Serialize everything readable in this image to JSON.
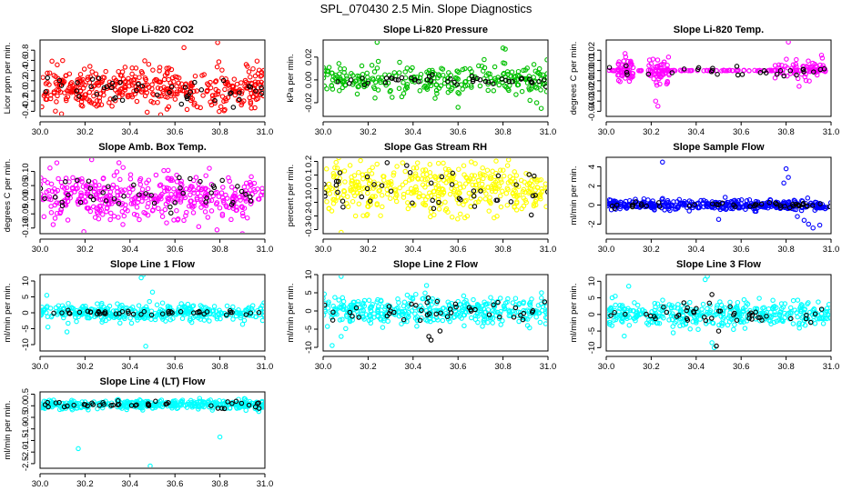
{
  "figure": {
    "title": "SPL_070430  2.5 Min. Slope Diagnostics"
  },
  "chart_data": [
    {
      "type": "scatter",
      "title": "Slope Li-820 CO2",
      "ylabel": "Licor ppm per min.",
      "xlim": [
        30.0,
        31.0
      ],
      "ylim": [
        -0.5,
        1.0
      ],
      "xticks": [
        30.0,
        30.2,
        30.4,
        30.6,
        30.8,
        31.0
      ],
      "xtick_labels": [
        "30.0",
        "30.2",
        "30.4",
        "30.6",
        "30.8",
        "31.0"
      ],
      "yticks": [
        -0.4,
        -0.2,
        0.0,
        0.2,
        0.4,
        0.6,
        0.8
      ],
      "ytick_labels": [
        "-0.4",
        "-0.2",
        "0.0",
        "0.2",
        "0.4",
        "0.6",
        "0.8"
      ],
      "series": [
        {
          "name": "color",
          "color": "#ff0000",
          "n": 420,
          "pattern": "noise",
          "center": 0.05,
          "spread": 0.2,
          "outliers": [
            [
              30.64,
              0.85
            ],
            [
              30.79,
              0.95
            ]
          ]
        },
        {
          "name": "black",
          "color": "#000000",
          "n": 45,
          "pattern": "noise",
          "center": 0.0,
          "spread": 0.15
        }
      ]
    },
    {
      "type": "scatter",
      "title": "Slope Li-820 Pressure",
      "ylabel": "kPa per min.",
      "xlim": [
        30.0,
        31.0
      ],
      "ylim": [
        -0.032,
        0.035
      ],
      "xticks": [
        30.0,
        30.2,
        30.4,
        30.6,
        30.8,
        31.0
      ],
      "xtick_labels": [
        "30.0",
        "30.2",
        "30.4",
        "30.6",
        "30.8",
        "31.0"
      ],
      "yticks": [
        -0.02,
        0.0,
        0.02
      ],
      "ytick_labels": [
        "-0.02",
        "0.00",
        "0.02"
      ],
      "series": [
        {
          "name": "color",
          "color": "#00c000",
          "n": 280,
          "pattern": "noise",
          "center": 0.0,
          "spread": 0.006,
          "outliers": [
            [
              30.24,
              0.033
            ],
            [
              30.8,
              0.028
            ],
            [
              30.81,
              0.027
            ],
            [
              30.97,
              -0.025
            ],
            [
              30.95,
              -0.02
            ],
            [
              30.92,
              -0.018
            ],
            [
              30.6,
              -0.024
            ]
          ]
        },
        {
          "name": "black",
          "color": "#000000",
          "n": 45,
          "pattern": "noise",
          "center": 0.0,
          "spread": 0.002
        }
      ]
    },
    {
      "type": "scatter",
      "title": "Slope Li-820 Temp.",
      "ylabel": "degrees C per min.",
      "xlim": [
        30.0,
        31.0
      ],
      "ylim": [
        -0.045,
        0.03
      ],
      "xticks": [
        30.0,
        30.2,
        30.4,
        30.6,
        30.8,
        31.0
      ],
      "xtick_labels": [
        "30.0",
        "30.2",
        "30.4",
        "30.6",
        "30.8",
        "31.0"
      ],
      "yticks": [
        -0.04,
        -0.03,
        -0.02,
        -0.01,
        0.0,
        0.01,
        0.02
      ],
      "ytick_labels": [
        "-0.04",
        "-0.03",
        "-0.02",
        "-0.01",
        "0.00",
        "0.01",
        "0.02"
      ],
      "series": [
        {
          "name": "color",
          "color": "#ff00ff",
          "n": 260,
          "pattern": "clusters",
          "center": 0.0,
          "spread": 0.006,
          "clusters": [
            [
              30.05,
              30.12
            ],
            [
              30.19,
              30.28
            ],
            [
              30.75,
              30.98
            ]
          ],
          "outliers": [
            [
              30.81,
              0.028
            ],
            [
              30.23,
              -0.035
            ],
            [
              30.22,
              -0.03
            ]
          ]
        },
        {
          "name": "black",
          "color": "#000000",
          "n": 30,
          "pattern": "noise",
          "center": 0.0,
          "spread": 0.003
        }
      ]
    },
    {
      "type": "scatter",
      "title": "Slope Amb. Box Temp.",
      "ylabel": "degrees C per min.",
      "xlim": [
        30.0,
        31.0
      ],
      "ylim": [
        -0.12,
        0.15
      ],
      "xticks": [
        30.0,
        30.2,
        30.4,
        30.6,
        30.8,
        31.0
      ],
      "xtick_labels": [
        "30.0",
        "30.2",
        "30.4",
        "30.6",
        "30.8",
        "31.0"
      ],
      "yticks": [
        -0.1,
        -0.05,
        0.0,
        0.05,
        0.1
      ],
      "ytick_labels": [
        "-0.10",
        "-0.05",
        "0.00",
        "0.05",
        "0.10"
      ],
      "series": [
        {
          "name": "color",
          "color": "#ff00ff",
          "n": 420,
          "pattern": "noise",
          "center": 0.01,
          "spread": 0.045,
          "outliers": [
            [
              30.9,
              -0.12
            ]
          ]
        },
        {
          "name": "black",
          "color": "#000000",
          "n": 45,
          "pattern": "noise",
          "center": 0.02,
          "spread": 0.03
        }
      ]
    },
    {
      "type": "scatter",
      "title": "Slope Gas Stream RH",
      "ylabel": "percent per min.",
      "xlim": [
        30.0,
        31.0
      ],
      "ylim": [
        -0.33,
        0.23
      ],
      "xticks": [
        30.0,
        30.2,
        30.4,
        30.6,
        30.8,
        31.0
      ],
      "xtick_labels": [
        "30.0",
        "30.2",
        "30.4",
        "30.6",
        "30.8",
        "31.0"
      ],
      "yticks": [
        -0.3,
        -0.2,
        -0.1,
        0.0,
        0.1,
        0.2
      ],
      "ytick_labels": [
        "-0.3",
        "-0.2",
        "-0.1",
        "0.0",
        "0.1",
        "0.2"
      ],
      "series": [
        {
          "name": "color",
          "color": "#ffff00",
          "n": 420,
          "pattern": "noise",
          "center": 0.0,
          "spread": 0.09,
          "outliers": [
            [
              30.08,
              -0.32
            ]
          ]
        },
        {
          "name": "black",
          "color": "#000000",
          "n": 45,
          "pattern": "noise",
          "center": 0.0,
          "spread": 0.08
        }
      ]
    },
    {
      "type": "scatter",
      "title": "Slope Sample Flow",
      "ylabel": "ml/min per min.",
      "xlim": [
        30.0,
        31.0
      ],
      "ylim": [
        -3.0,
        5.0
      ],
      "xticks": [
        30.0,
        30.2,
        30.4,
        30.6,
        30.8,
        31.0
      ],
      "xtick_labels": [
        "30.0",
        "30.2",
        "30.4",
        "30.6",
        "30.8",
        "31.0"
      ],
      "yticks": [
        -2,
        0,
        2,
        4
      ],
      "ytick_labels": [
        "-2",
        "0",
        "2",
        "4"
      ],
      "series": [
        {
          "name": "color",
          "color": "#0000ff",
          "n": 380,
          "pattern": "noise",
          "center": 0.0,
          "spread": 0.25,
          "outliers": [
            [
              30.25,
              4.5
            ],
            [
              30.8,
              3.8
            ],
            [
              30.81,
              2.9
            ],
            [
              30.79,
              2.3
            ],
            [
              30.9,
              -2.0
            ],
            [
              30.92,
              -2.4
            ],
            [
              30.95,
              -2.1
            ],
            [
              30.88,
              -1.6
            ],
            [
              30.5,
              -1.5
            ],
            [
              30.85,
              -1.2
            ]
          ]
        },
        {
          "name": "black",
          "color": "#000000",
          "n": 45,
          "pattern": "noise",
          "center": 0.0,
          "spread": 0.15
        }
      ]
    },
    {
      "type": "scatter",
      "title": "Slope Line 1 Flow",
      "ylabel": "ml/min per min.",
      "xlim": [
        30.0,
        31.0
      ],
      "ylim": [
        -12.0,
        12.0
      ],
      "xticks": [
        30.0,
        30.2,
        30.4,
        30.6,
        30.8,
        31.0
      ],
      "xtick_labels": [
        "30.0",
        "30.2",
        "30.4",
        "30.6",
        "30.8",
        "31.0"
      ],
      "yticks": [
        -10,
        -5,
        0,
        5,
        10
      ],
      "ytick_labels": [
        "-10",
        "-5",
        "0",
        "5",
        "10"
      ],
      "series": [
        {
          "name": "color",
          "color": "#00ffff",
          "n": 380,
          "pattern": "noise",
          "center": 0.0,
          "spread": 1.3,
          "outliers": [
            [
              30.45,
              11.0
            ],
            [
              30.46,
              12.0
            ],
            [
              30.47,
              -10.5
            ],
            [
              30.12,
              -6.0
            ],
            [
              30.5,
              6.5
            ],
            [
              30.03,
              5.5
            ]
          ]
        },
        {
          "name": "black",
          "color": "#000000",
          "n": 45,
          "pattern": "noise",
          "center": 0.0,
          "spread": 0.4
        }
      ]
    },
    {
      "type": "scatter",
      "title": "Slope Line 2 Flow",
      "ylabel": "ml/min per min.",
      "xlim": [
        30.0,
        31.0
      ],
      "ylim": [
        -11.0,
        10.0
      ],
      "xticks": [
        30.0,
        30.2,
        30.4,
        30.6,
        30.8,
        31.0
      ],
      "xtick_labels": [
        "30.0",
        "30.2",
        "30.4",
        "30.6",
        "30.8",
        "31.0"
      ],
      "yticks": [
        -10,
        -5,
        0,
        5,
        10
      ],
      "ytick_labels": [
        "-10",
        "-5",
        "0",
        "5",
        "10"
      ],
      "series": [
        {
          "name": "color",
          "color": "#00ffff",
          "n": 380,
          "pattern": "noise",
          "center": 0.0,
          "spread": 1.8,
          "outliers": [
            [
              30.08,
              9.5
            ],
            [
              30.04,
              -9.5
            ],
            [
              30.08,
              -7.0
            ],
            [
              30.99,
              -3.5
            ],
            [
              30.0,
              3.5
            ],
            [
              30.46,
              7.0
            ]
          ]
        },
        {
          "name": "black",
          "color": "#000000",
          "n": 45,
          "pattern": "noise",
          "center": 0.0,
          "spread": 1.5,
          "outliers": [
            [
              30.47,
              -7.0
            ],
            [
              30.48,
              -8.0
            ],
            [
              30.52,
              -5.5
            ]
          ]
        }
      ]
    },
    {
      "type": "scatter",
      "title": "Slope Line 3 Flow",
      "ylabel": "ml/min per min.",
      "xlim": [
        30.0,
        31.0
      ],
      "ylim": [
        -11.0,
        12.0
      ],
      "xticks": [
        30.0,
        30.2,
        30.4,
        30.6,
        30.8,
        31.0
      ],
      "xtick_labels": [
        "30.0",
        "30.2",
        "30.4",
        "30.6",
        "30.8",
        "31.0"
      ],
      "yticks": [
        -10,
        -5,
        0,
        5,
        10
      ],
      "ytick_labels": [
        "-10",
        "-5",
        "0",
        "5",
        "10"
      ],
      "series": [
        {
          "name": "color",
          "color": "#00ffff",
          "n": 380,
          "pattern": "noise",
          "center": 0.0,
          "spread": 1.8,
          "outliers": [
            [
              30.44,
              10.5
            ],
            [
              30.45,
              11.5
            ],
            [
              30.48,
              -10.0
            ],
            [
              30.47,
              -8.5
            ],
            [
              30.08,
              -6.5
            ],
            [
              30.1,
              8.5
            ],
            [
              30.04,
              5.5
            ]
          ]
        },
        {
          "name": "black",
          "color": "#000000",
          "n": 45,
          "pattern": "noise",
          "center": 0.0,
          "spread": 1.5,
          "outliers": [
            [
              30.47,
              6.0
            ],
            [
              30.5,
              -5.0
            ],
            [
              30.49,
              -9.5
            ]
          ]
        }
      ]
    },
    {
      "type": "scatter",
      "title": "Slope Line 4 (LT) Flow",
      "ylabel": "ml/min per min.",
      "xlim": [
        30.0,
        31.0
      ],
      "ylim": [
        -2.7,
        0.6
      ],
      "xticks": [
        30.0,
        30.2,
        30.4,
        30.6,
        30.8,
        31.0
      ],
      "xtick_labels": [
        "30.0",
        "30.2",
        "30.4",
        "30.6",
        "30.8",
        "31.0"
      ],
      "yticks": [
        -2.5,
        -2.0,
        -1.5,
        -1.0,
        -0.5,
        0.0,
        0.5
      ],
      "ytick_labels": [
        "-2.5",
        "-2.0",
        "-1.5",
        "-1.0",
        "-0.5",
        "0.0",
        "0.5"
      ],
      "series": [
        {
          "name": "color",
          "color": "#00ffff",
          "n": 380,
          "pattern": "noise",
          "center": 0.05,
          "spread": 0.1,
          "outliers": [
            [
              30.17,
              -1.85
            ],
            [
              30.8,
              -1.35
            ],
            [
              30.49,
              -2.6
            ]
          ]
        },
        {
          "name": "black",
          "color": "#000000",
          "n": 45,
          "pattern": "noise",
          "center": 0.05,
          "spread": 0.08
        }
      ]
    }
  ]
}
